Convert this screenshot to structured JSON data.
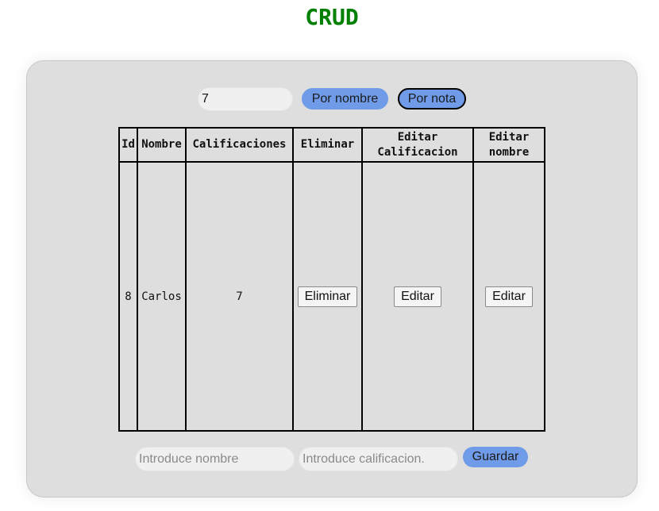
{
  "page": {
    "title": "CRUD"
  },
  "filter": {
    "input_value": "7",
    "by_name_label": "Por nombre",
    "by_grade_label": "Por nota"
  },
  "table": {
    "headers": {
      "id": "Id",
      "name": "Nombre",
      "grades": "Calificaciones",
      "delete": "Eliminar",
      "edit_grade": "Editar Calificacion",
      "edit_name": "Editar nombre"
    },
    "rows": [
      {
        "id": "8",
        "name": "Carlos",
        "grade": "7",
        "delete_label": "Eliminar",
        "edit_grade_label": "Editar",
        "edit_name_label": "Editar"
      }
    ]
  },
  "form": {
    "name_placeholder": "Introduce nombre",
    "grade_placeholder": "Introduce calificacion.",
    "save_label": "Guardar"
  },
  "colors": {
    "title": "#008000",
    "card_background": "#dedede",
    "button_accent": "#6f9be8"
  }
}
